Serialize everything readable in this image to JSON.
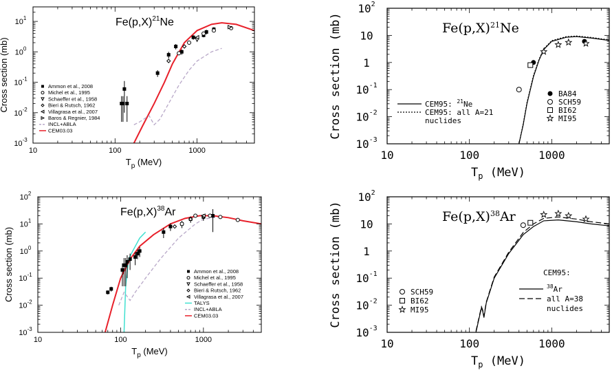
{
  "chart_data": [
    {
      "id": "p1",
      "type": "line",
      "style": "sans",
      "title": "Fe(p,X)",
      "title_sup": "21",
      "title_tail": "Ne",
      "xlabel": "T",
      "xlabel_sub": "p",
      "xlabel_unit": " (MeV)",
      "ylabel": "Cross section (mb)",
      "xlim": [
        10,
        5000
      ],
      "ylim": [
        0.001,
        30
      ],
      "x_ticks": [
        "10",
        "100",
        "1000"
      ],
      "y_ticks": [
        {
          "base": "10",
          "exp": "-3"
        },
        {
          "base": "10",
          "exp": "-2"
        },
        {
          "base": "10",
          "exp": "-1"
        },
        {
          "base": "10",
          "exp": "0"
        },
        {
          "base": "10",
          "exp": "1"
        }
      ],
      "legend": [
        {
          "label": "Ammon et al., 2008",
          "marker": "square-filled"
        },
        {
          "label": "Michel et al., 1995",
          "marker": "circle-open"
        },
        {
          "label": "Schaeffer et al., 1958",
          "marker": "tri-down-open"
        },
        {
          "label": "Bieri & Rutsch, 1962",
          "marker": "diamond-open"
        },
        {
          "label": "Villagrasa et al., 2007",
          "marker": "tri-left-open"
        },
        {
          "label": "Baros & Regnier, 1984",
          "marker": "tri-right-open"
        },
        {
          "label": "INCL+ABLA",
          "marker": "line",
          "color": "#b8a8c8",
          "dash": "5,3"
        },
        {
          "label": "CEM03.03",
          "marker": "line",
          "color": "#e8202a"
        }
      ],
      "series": [
        {
          "name": "CEM03.03",
          "kind": "line",
          "color": "#e8202a",
          "width": 2,
          "x": [
            170,
            220,
            300,
            400,
            500,
            700,
            1000,
            1500,
            2000,
            3000,
            5000
          ],
          "y": [
            0.001,
            0.004,
            0.02,
            0.1,
            0.4,
            2.0,
            5.0,
            8.0,
            9.0,
            8.0,
            5.0
          ]
        },
        {
          "name": "INCL+ABLA",
          "kind": "line",
          "color": "#b8a8c8",
          "width": 1.3,
          "dash": "5,3",
          "x": [
            170,
            200,
            260,
            300,
            350,
            450,
            600,
            800,
            1000,
            1500,
            2000
          ],
          "y": [
            0.004,
            0.005,
            0.008,
            0.004,
            0.006,
            0.02,
            0.08,
            0.25,
            0.5,
            1.0,
            1.3
          ]
        },
        {
          "name": "Ammon et al., 2008",
          "kind": "points",
          "marker": "square-filled",
          "x": [
            120,
            125,
            130,
            140,
            330,
            450,
            550,
            650,
            900,
            1200,
            1300,
            1600
          ],
          "y": [
            0.02,
            0.02,
            0.06,
            0.02,
            0.2,
            0.8,
            1.5,
            1.0,
            3.0,
            3.5,
            4.5,
            5.5
          ],
          "err": [
            0.015,
            0.015,
            0.05,
            0.015,
            0.05,
            0.2,
            0.3,
            0.2,
            0.5,
            0.5,
            0.8,
            1.0
          ]
        },
        {
          "name": "Michel et al., 1995",
          "kind": "points",
          "marker": "circle-open",
          "x": [
            600,
            800,
            1200,
            1600,
            2600
          ],
          "y": [
            0.9,
            2.0,
            4.0,
            5.0,
            6.0
          ]
        },
        {
          "name": "Schaeffer et al., 1958",
          "kind": "points",
          "marker": "tri-down-open",
          "x": [
            1000
          ],
          "y": [
            2.5
          ]
        },
        {
          "name": "Bieri & Rutsch, 1962",
          "kind": "points",
          "marker": "diamond-open",
          "x": [
            450,
            700
          ],
          "y": [
            0.5,
            1.5
          ]
        },
        {
          "name": "Villagrasa et al., 2007",
          "kind": "points",
          "marker": "tri-left-open",
          "x": [
            1000
          ],
          "y": [
            3.0
          ]
        },
        {
          "name": "Baros & Regnier, 1984",
          "kind": "points",
          "marker": "tri-right-open",
          "x": [
            2500
          ],
          "y": [
            6.5
          ]
        }
      ]
    },
    {
      "id": "p2",
      "type": "line",
      "style": "mono",
      "title": "Fe(p,X)",
      "title_sup": "21",
      "title_tail": "Ne",
      "xlabel": "T",
      "xlabel_sub": "p",
      "xlabel_unit": " (MeV)",
      "ylabel": "Cross section (mb)",
      "xlim": [
        10,
        5000
      ],
      "ylim": [
        0.001,
        100
      ],
      "x_ticks": [
        "10",
        "100",
        "1000"
      ],
      "y_ticks": [
        {
          "base": "10",
          "exp": "-3"
        },
        {
          "base": "10",
          "exp": "-2"
        },
        {
          "base": "10",
          "exp": "-1"
        },
        {
          "base": "1",
          "exp": ""
        },
        {
          "base": "10",
          "exp": ""
        },
        {
          "base": "10",
          "exp": "2"
        }
      ],
      "legend_lines": [
        {
          "label": "CEM95:",
          "sup": "21",
          "tail": "Ne",
          "dash": ""
        },
        {
          "label": "CEM95:",
          "sup": "",
          "tail": "all A=21",
          "dash": "2,2"
        },
        {
          "label": "",
          "sup": "",
          "tail": "nuclides",
          "dash": "none"
        }
      ],
      "legend_points": [
        {
          "label": "BA84",
          "marker": "circle-filled"
        },
        {
          "label": "SCH59",
          "marker": "circle-open"
        },
        {
          "label": "BI62",
          "marker": "square-open"
        },
        {
          "label": "MI95",
          "marker": "star-open"
        }
      ],
      "series": [
        {
          "name": "CEM95: 21Ne",
          "kind": "line",
          "color": "#000000",
          "width": 1.2,
          "x": [
            400,
            450,
            500,
            600,
            700,
            800,
            1000,
            1500,
            2000,
            3000,
            5000
          ],
          "y": [
            0.001,
            0.005,
            0.03,
            0.3,
            1.2,
            3.0,
            6.0,
            8.5,
            9.0,
            8.0,
            6.5
          ]
        },
        {
          "name": "CEM95: all A=21 nuclides",
          "kind": "line",
          "color": "#000000",
          "width": 1.2,
          "dash": "2,2",
          "x": [
            400,
            450,
            500,
            600,
            700,
            800,
            1000,
            1500,
            2000,
            3000,
            5000
          ],
          "y": [
            0.001,
            0.0055,
            0.033,
            0.33,
            1.3,
            3.2,
            6.4,
            9.0,
            9.5,
            8.4,
            6.8
          ]
        },
        {
          "name": "BA84",
          "kind": "points",
          "marker": "circle-filled",
          "x": [
            600,
            2500
          ],
          "y": [
            1.0,
            6.0
          ]
        },
        {
          "name": "SCH59",
          "kind": "points",
          "marker": "circle-open",
          "x": [
            400
          ],
          "y": [
            0.1
          ]
        },
        {
          "name": "BI62",
          "kind": "points",
          "marker": "square-open",
          "x": [
            550
          ],
          "y": [
            0.8
          ]
        },
        {
          "name": "MI95",
          "kind": "points",
          "marker": "star-open",
          "x": [
            800,
            1200,
            1600,
            2600
          ],
          "y": [
            2.5,
            4.5,
            5.5,
            5.0
          ]
        }
      ]
    },
    {
      "id": "p3",
      "type": "line",
      "style": "sans",
      "title": "Fe(p,X)",
      "title_sup": "38",
      "title_tail": "Ar",
      "xlabel": "T",
      "xlabel_sub": "p",
      "xlabel_unit": " (MeV)",
      "ylabel": "Cross section (mb)",
      "xlim": [
        10,
        5000
      ],
      "ylim": [
        0.001,
        100
      ],
      "x_ticks": [
        "10",
        "100",
        "1000"
      ],
      "y_ticks": [
        {
          "base": "10",
          "exp": "-3"
        },
        {
          "base": "10",
          "exp": "-2"
        },
        {
          "base": "10",
          "exp": "-1"
        },
        {
          "base": "10",
          "exp": "0"
        },
        {
          "base": "10",
          "exp": "1"
        },
        {
          "base": "10",
          "exp": "2"
        }
      ],
      "legend": [
        {
          "label": "Ammon et al., 2008",
          "marker": "square-filled"
        },
        {
          "label": "Michel et al., 1995",
          "marker": "circle-open"
        },
        {
          "label": "Schaeffer et al., 1958",
          "marker": "tri-down-open"
        },
        {
          "label": "Bieri & Rutsch, 1962",
          "marker": "diamond-open"
        },
        {
          "label": "Villagrasa et al., 2007",
          "marker": "tri-left-open"
        },
        {
          "label": "TALYS",
          "marker": "line",
          "color": "#40e0d0"
        },
        {
          "label": "INCL+ABLA",
          "marker": "line",
          "color": "#b8a8c8",
          "dash": "5,3"
        },
        {
          "label": "CEM03.03",
          "marker": "line",
          "color": "#e8202a"
        }
      ],
      "series": [
        {
          "name": "TALYS",
          "kind": "line",
          "color": "#40e0d0",
          "width": 1.5,
          "x": [
            110,
            115,
            125,
            140,
            170,
            200
          ],
          "y": [
            0.001,
            0.05,
            0.5,
            1.0,
            3.0,
            5.0
          ]
        },
        {
          "name": "INCL+ABLA",
          "kind": "line",
          "color": "#b8a8c8",
          "width": 1.3,
          "dash": "5,3",
          "x": [
            95,
            110,
            130,
            150,
            200,
            300,
            500,
            800,
            1000,
            1500
          ],
          "y": [
            0.01,
            0.03,
            0.015,
            0.03,
            0.1,
            0.5,
            3.0,
            10.0,
            15.0,
            18.0
          ]
        },
        {
          "name": "CEM03.03",
          "kind": "line",
          "color": "#e8202a",
          "width": 2,
          "x": [
            65,
            80,
            100,
            130,
            170,
            250,
            400,
            600,
            900,
            1300,
            2000,
            3000,
            5000
          ],
          "y": [
            0.001,
            0.01,
            0.1,
            0.5,
            1.5,
            4.0,
            10.0,
            16.0,
            20.0,
            20.0,
            17.0,
            13.0,
            10.0
          ]
        },
        {
          "name": "Ammon et al., 2008",
          "kind": "points",
          "marker": "square-filled",
          "x": [
            70,
            77,
            105,
            110,
            115,
            120,
            130,
            150,
            160,
            170,
            330,
            400,
            550,
            700,
            1000,
            1300
          ],
          "y": [
            0.03,
            0.04,
            0.2,
            0.3,
            0.3,
            0.4,
            0.5,
            0.6,
            0.8,
            1.0,
            5.0,
            8.0,
            10.0,
            15.0,
            18.0,
            20.0
          ],
          "err": [
            0.005,
            0.008,
            0.15,
            0.25,
            0.25,
            0.3,
            0.3,
            0.3,
            0.3,
            0.4,
            2.0,
            2.5,
            3.0,
            4.0,
            5.0,
            15.0
          ]
        },
        {
          "name": "Michel et al., 1995",
          "kind": "points",
          "marker": "circle-open",
          "x": [
            550,
            800,
            1200,
            1600,
            2600
          ],
          "y": [
            10.0,
            20.0,
            20.0,
            18.0,
            14.0
          ]
        },
        {
          "name": "Schaeffer et al., 1958",
          "kind": "points",
          "marker": "tri-down-open",
          "x": [
            1000
          ],
          "y": [
            18.0
          ]
        },
        {
          "name": "Bieri & Rutsch, 1962",
          "kind": "points",
          "marker": "diamond-open",
          "x": [
            450,
            700
          ],
          "y": [
            8.0,
            15.0
          ]
        },
        {
          "name": "Villagrasa et al., 2007",
          "kind": "points",
          "marker": "tri-left-open",
          "x": [
            1000
          ],
          "y": [
            20.0
          ]
        }
      ]
    },
    {
      "id": "p4",
      "type": "line",
      "style": "mono",
      "title": "Fe(p,X)",
      "title_sup": "38",
      "title_tail": "Ar",
      "xlabel": "T",
      "xlabel_sub": "p",
      "xlabel_unit": " (MeV)",
      "ylabel": "Cross section (mb)",
      "xlim": [
        10,
        5000
      ],
      "ylim": [
        0.001,
        100
      ],
      "x_ticks": [
        "10",
        "100",
        "1000"
      ],
      "y_ticks": [
        {
          "base": "10",
          "exp": "-3"
        },
        {
          "base": "10",
          "exp": "-2"
        },
        {
          "base": "10",
          "exp": "-1"
        },
        {
          "base": "1",
          "exp": ""
        },
        {
          "base": "10",
          "exp": ""
        },
        {
          "base": "10",
          "exp": "2"
        }
      ],
      "legend_title": "CEM95:",
      "legend_lines": [
        {
          "label": "",
          "sup": "38",
          "tail": "Ar",
          "dash": ""
        },
        {
          "label": "",
          "sup": "",
          "tail": "all A=38",
          "dash": "8,4"
        },
        {
          "label": "",
          "sup": "",
          "tail": "nuclides",
          "dash": "none"
        }
      ],
      "legend_points": [
        {
          "label": "SCH59",
          "marker": "circle-open"
        },
        {
          "label": "BI62",
          "marker": "square-open"
        },
        {
          "label": "MI95",
          "marker": "star-open"
        }
      ],
      "series": [
        {
          "name": "CEM95: 38Ar",
          "kind": "line",
          "color": "#000000",
          "width": 1.2,
          "x": [
            120,
            130,
            140,
            145,
            150,
            160,
            200,
            300,
            450,
            600,
            800,
            1200,
            2000,
            3000,
            5000
          ],
          "y": [
            0.001,
            0.003,
            0.008,
            0.006,
            0.0035,
            0.012,
            0.1,
            0.8,
            4.0,
            8.0,
            13.0,
            14.0,
            12.0,
            10.0,
            8.5
          ]
        },
        {
          "name": "CEM95: all A=38 nuclides",
          "kind": "line",
          "color": "#000000",
          "width": 1.2,
          "dash": "8,4",
          "x": [
            120,
            130,
            140,
            145,
            150,
            160,
            200,
            300,
            450,
            600,
            800,
            1200,
            2000,
            3000,
            5000
          ],
          "y": [
            0.0011,
            0.0033,
            0.0088,
            0.0066,
            0.0039,
            0.013,
            0.11,
            0.9,
            4.8,
            10.0,
            16.0,
            18.0,
            15.0,
            12.0,
            10.0
          ]
        },
        {
          "name": "SCH59",
          "kind": "points",
          "marker": "circle-open",
          "x": [
            450
          ],
          "y": [
            9.0
          ]
        },
        {
          "name": "BI62",
          "kind": "points",
          "marker": "square-open",
          "x": [
            550
          ],
          "y": [
            11.0
          ]
        },
        {
          "name": "MI95",
          "kind": "points",
          "marker": "star-open",
          "x": [
            800,
            1200,
            1600,
            2600
          ],
          "y": [
            22.0,
            24.0,
            20.0,
            15.0
          ]
        }
      ]
    }
  ]
}
